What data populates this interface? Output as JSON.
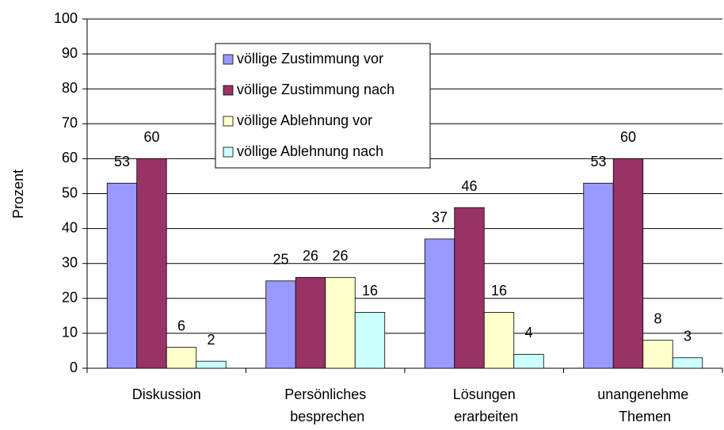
{
  "chart_data": {
    "type": "bar",
    "y_label": "Prozent",
    "categories": [
      "Diskussion",
      "Persönliches besprechen",
      "Lösungen erarbeiten",
      "unangenehme Themen"
    ],
    "series": [
      {
        "name": "völlige Zustimmung vor",
        "color": "#9999ff",
        "values": [
          53,
          25,
          37,
          53
        ]
      },
      {
        "name": "völlige Zustimmung nach",
        "color": "#993366",
        "values": [
          60,
          26,
          46,
          60
        ]
      },
      {
        "name": "völlige Ablehnung vor",
        "color": "#ffffcc",
        "values": [
          6,
          26,
          16,
          8
        ]
      },
      {
        "name": "völlige Ablehnung nach",
        "color": "#ccffff",
        "values": [
          2,
          16,
          4,
          3
        ]
      }
    ],
    "ylim": [
      0,
      100
    ],
    "yticks": [
      0,
      10,
      20,
      30,
      40,
      50,
      60,
      70,
      80,
      90,
      100
    ],
    "grid": true
  }
}
